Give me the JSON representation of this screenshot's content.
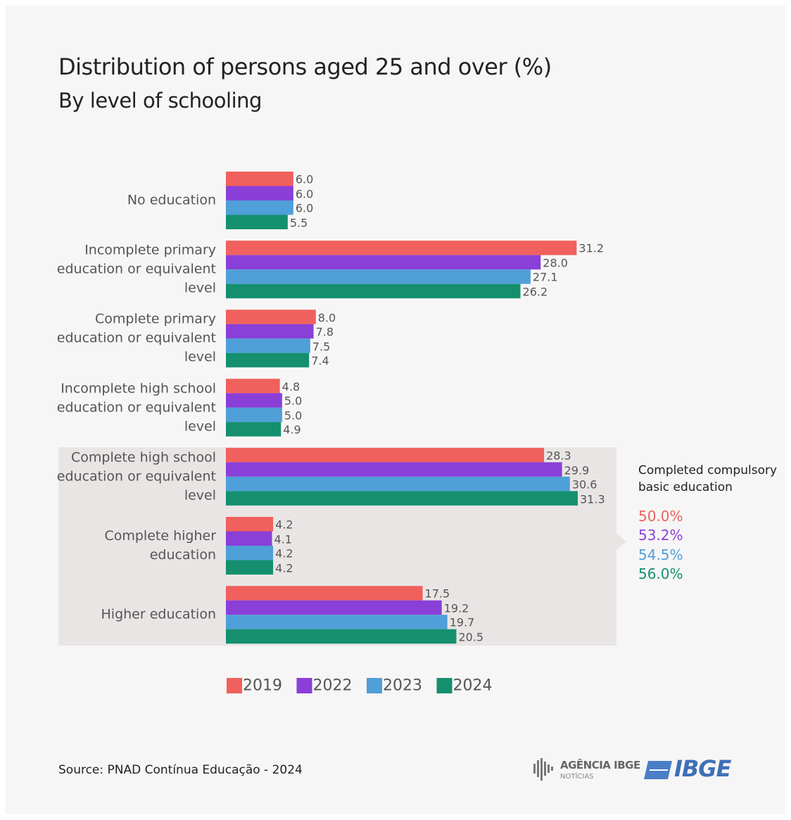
{
  "chart_data": {
    "type": "hbar",
    "title": "Distribution of persons aged 25 and over (%)",
    "subtitle": "By level of schooling",
    "categories": [
      "No education",
      "Incomplete primary education or equivalent level",
      "Complete primary education or equivalent level",
      "Incomplete high school education or equivalent level",
      "Complete high school education or equivalent level",
      "Complete higher education",
      "Higher education"
    ],
    "series": [
      {
        "name": "2019",
        "color": "#f0605d",
        "values": [
          6.0,
          31.2,
          8.0,
          4.8,
          28.3,
          4.2,
          17.5
        ],
        "value_labels": [
          "6.0",
          "31.2",
          "8.0",
          "4.8",
          "28.3",
          "4.2",
          "17.5"
        ]
      },
      {
        "name": "2022",
        "color": "#8a3fd8",
        "values": [
          6.0,
          28.0,
          7.8,
          5.0,
          29.9,
          4.1,
          19.2
        ],
        "value_labels": [
          "6.0",
          "28.0",
          "7.8",
          "5.0",
          "29.9",
          "4.1",
          "19.2"
        ]
      },
      {
        "name": "2023",
        "color": "#4f9fd8",
        "values": [
          6.0,
          27.1,
          7.5,
          5.0,
          30.6,
          4.2,
          19.7
        ],
        "value_labels": [
          "6.0",
          "27.1",
          "7.5",
          "5.0",
          "30.6",
          "4.2",
          "19.7"
        ]
      },
      {
        "name": "2024",
        "color": "#14906f",
        "values": [
          5.5,
          26.2,
          7.4,
          4.9,
          31.3,
          4.2,
          20.5
        ],
        "value_labels": [
          "5.5",
          "26.2",
          "7.4",
          "4.9",
          "31.3",
          "4.2",
          "20.5"
        ]
      }
    ],
    "annotation": {
      "text": "Completed compulsory basic education",
      "values": [
        50.0,
        53.2,
        54.5,
        56.0
      ],
      "value_labels": [
        "50.0%",
        "53.2%",
        "54.5%",
        "56.0%"
      ]
    },
    "source": "Source: PNAD Contínua Educação - 2024",
    "logos": {
      "agency": "AGÊNCIA IBGE",
      "agency_sub": "NOTÍCIAS",
      "ibge": "IBGE"
    }
  }
}
